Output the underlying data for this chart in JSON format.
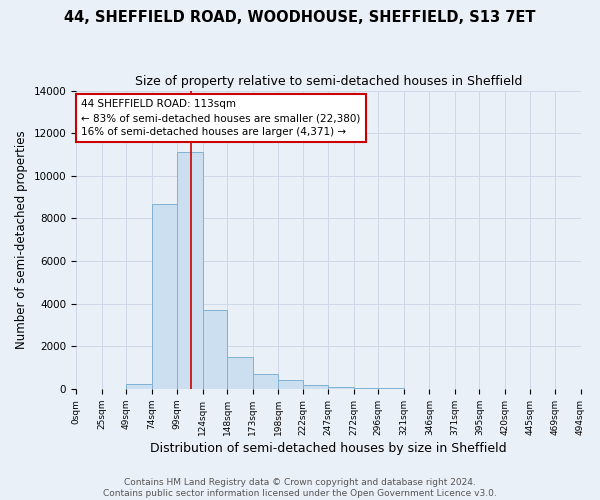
{
  "title": "44, SHEFFIELD ROAD, WOODHOUSE, SHEFFIELD, S13 7ET",
  "subtitle": "Size of property relative to semi-detached houses in Sheffield",
  "xlabel": "Distribution of semi-detached houses by size in Sheffield",
  "ylabel": "Number of semi-detached properties",
  "footer": "Contains HM Land Registry data © Crown copyright and database right 2024.\nContains public sector information licensed under the Open Government Licence v3.0.",
  "bar_edges": [
    0,
    25,
    49,
    74,
    99,
    124,
    148,
    173,
    198,
    222,
    247,
    272,
    296,
    321,
    346,
    371,
    395,
    420,
    445,
    469,
    494
  ],
  "bar_values": [
    0,
    0,
    250,
    8700,
    11100,
    3700,
    1500,
    700,
    400,
    200,
    100,
    50,
    50,
    0,
    0,
    0,
    0,
    0,
    0,
    0
  ],
  "bar_color": "#ccdff0",
  "bar_edge_color": "#7fb3d3",
  "property_size": 113,
  "vline_color": "#cc0000",
  "annotation_line1": "44 SHEFFIELD ROAD: 113sqm",
  "annotation_line2": "← 83% of semi-detached houses are smaller (22,380)",
  "annotation_line3": "16% of semi-detached houses are larger (4,371) →",
  "annotation_box_color": "#ffffff",
  "annotation_box_edge": "#cc0000",
  "ylim": [
    0,
    14000
  ],
  "yticks": [
    0,
    2000,
    4000,
    6000,
    8000,
    10000,
    12000,
    14000
  ],
  "tick_labels": [
    "0sqm",
    "25sqm",
    "49sqm",
    "74sqm",
    "99sqm",
    "124sqm",
    "148sqm",
    "173sqm",
    "198sqm",
    "222sqm",
    "247sqm",
    "272sqm",
    "296sqm",
    "321sqm",
    "346sqm",
    "371sqm",
    "395sqm",
    "420sqm",
    "445sqm",
    "469sqm",
    "494sqm"
  ],
  "grid_color": "#d0d8e8",
  "background_color": "#eaf0f8",
  "title_fontsize": 10.5,
  "subtitle_fontsize": 9,
  "axis_label_fontsize": 8.5,
  "tick_fontsize": 6.5,
  "footer_fontsize": 6.5,
  "annotation_fontsize": 7.5
}
